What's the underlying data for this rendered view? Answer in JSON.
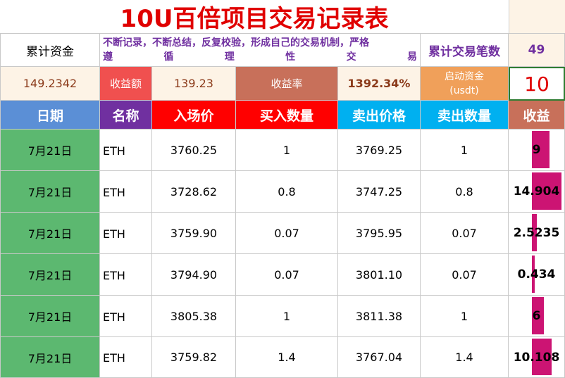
{
  "title": "10U百倍项目交易记录表",
  "summary": {
    "cum_funds_label": "累计资金",
    "note_line1": "不断记录，不断总结，反复校验，形成自己的交易机制，严格",
    "note_line2_chars": [
      "遵",
      "循",
      "理",
      "性",
      "交",
      "易"
    ],
    "trade_count_label": "累计交易笔数",
    "trade_count": "49",
    "cum_funds_value": "149.2342",
    "profit_label": "收益额",
    "profit_value": "139.23",
    "rate_label": "收益率",
    "rate_value": "1392.34%",
    "start_label_1": "启动资金",
    "start_label_2": "(usdt)",
    "start_value": "10"
  },
  "headers": [
    "日期",
    "名称",
    "入场价",
    "买入数量",
    "卖出价格",
    "卖出数量",
    "收益"
  ],
  "rows": [
    {
      "date": "7月21日",
      "name": "ETH",
      "entry": "3760.25",
      "buy_qty": "1",
      "sell_price": "3769.25",
      "sell_qty": "1",
      "profit": "9",
      "profit_num": 9
    },
    {
      "date": "7月21日",
      "name": "ETH",
      "entry": "3728.62",
      "buy_qty": "0.8",
      "sell_price": "3747.25",
      "sell_qty": "0.8",
      "profit": "14.904",
      "profit_num": 14.904
    },
    {
      "date": "7月21日",
      "name": "ETH",
      "entry": "3759.90",
      "buy_qty": "0.07",
      "sell_price": "3795.95",
      "sell_qty": "0.07",
      "profit": "2.5235",
      "profit_num": 2.5235
    },
    {
      "date": "7月21日",
      "name": "ETH",
      "entry": "3794.90",
      "buy_qty": "0.07",
      "sell_price": "3801.10",
      "sell_qty": "0.07",
      "profit": "0.434",
      "profit_num": 0.434
    },
    {
      "date": "7月21日",
      "name": "ETH",
      "entry": "3805.38",
      "buy_qty": "1",
      "sell_price": "3811.38",
      "sell_qty": "1",
      "profit": "6",
      "profit_num": 6
    },
    {
      "date": "7月21日",
      "name": "ETH",
      "entry": "3759.82",
      "buy_qty": "1.4",
      "sell_price": "3767.04",
      "sell_qty": "1.4",
      "profit": "10.108",
      "profit_num": 10.108
    }
  ],
  "colors": {
    "title": "#e00000",
    "purple_text": "#7030a0",
    "cream": "#fdf3e6",
    "salmon": "#f0504f",
    "brown": "#c8705a",
    "orange": "#f0a05a",
    "hdr_blue": "#5b8fd6",
    "hdr_purple": "#7030a0",
    "hdr_red": "#ff0000",
    "hdr_cyan": "#00b0f0",
    "hdr_brown": "#c8705a",
    "date_green": "#5cb870",
    "databar": "#cc1473"
  }
}
